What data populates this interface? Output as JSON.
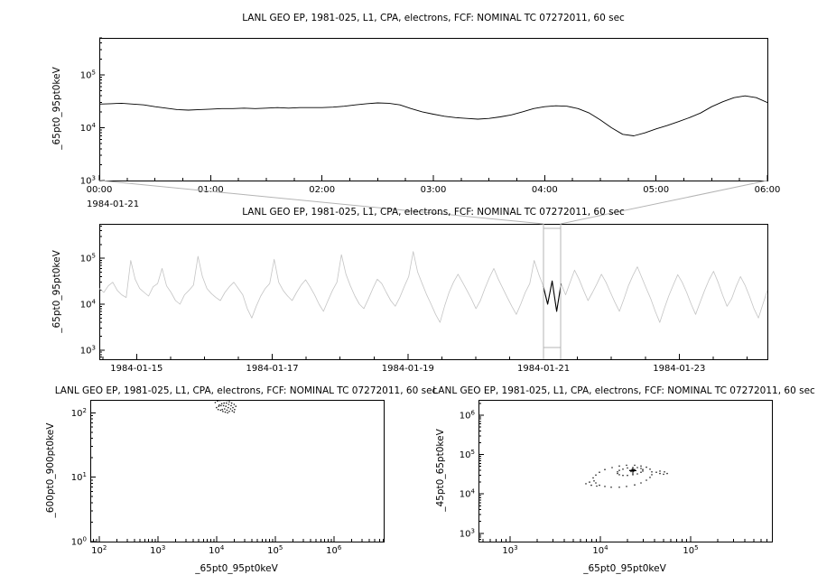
{
  "window": {
    "background": "#ffffff"
  },
  "titles": {
    "panel_top": "LANL GEO EP, 1981-025, L1, CPA, electrons, FCF: NOMINAL TC 07272011, 60 sec",
    "panel_context": "LANL GEO EP, 1981-025, L1, CPA, electrons, FCF: NOMINAL TC 07272011, 60 sec",
    "panel_bottom_left": "LANL GEO EP, 1981-025, L1, CPA, electrons, FCF: NOMINAL TC 07272011, 60 sec",
    "panel_bottom_right": "LANL GEO EP, 1981-025, L1, CPA, electrons, FCF: NOMINAL TC 07272011, 60 sec"
  },
  "labels": {
    "top_ylabel": "_65pt0_95pt0keV",
    "context_ylabel": "_65pt0_95pt0keV",
    "bl_ylabel": "_600pt0_900pt0keV",
    "bl_xlabel": "_65pt0_95pt0keV",
    "br_ylabel": "_45pt0_65pt0keV",
    "br_xlabel": "_65pt0_95pt0keV",
    "top_date_label": "1984-01-21"
  },
  "chart_data": [
    {
      "id": "top",
      "type": "line",
      "title": "LANL GEO EP, 1981-025, L1, CPA, electrons, FCF: NOMINAL TC 07272011, 60 sec",
      "ylabel": "_65pt0_95pt0keV",
      "x_axis": {
        "scale": "linear",
        "min": 0,
        "max": 6,
        "minor_step": 0.25,
        "ticks": [
          {
            "v": 0,
            "label": "00:00"
          },
          {
            "v": 1,
            "label": "01:00"
          },
          {
            "v": 2,
            "label": "02:00"
          },
          {
            "v": 3,
            "label": "03:00"
          },
          {
            "v": 4,
            "label": "04:00"
          },
          {
            "v": 5,
            "label": "05:00"
          },
          {
            "v": 6,
            "label": "06:00"
          }
        ],
        "date_label": "1984-01-21"
      },
      "y_axis": {
        "scale": "log",
        "min": 3,
        "max": 5.7,
        "tick_exponents": [
          3,
          4,
          5
        ]
      },
      "series": [
        {
          "name": "_65pt0_95pt0keV",
          "color": "#000000",
          "width": 0.9,
          "x_start": 0,
          "x_end": 6,
          "y": [
            28000,
            28500,
            29000,
            28000,
            27000,
            25000,
            23500,
            22000,
            21500,
            22000,
            22500,
            23000,
            23000,
            23500,
            23000,
            23500,
            24000,
            23500,
            24000,
            24000,
            24000,
            24500,
            25500,
            27000,
            28500,
            29500,
            29000,
            27000,
            23000,
            20000,
            18000,
            16500,
            15500,
            15000,
            14500,
            15000,
            16000,
            17500,
            20000,
            23000,
            25000,
            26000,
            25500,
            23000,
            19000,
            14000,
            10000,
            7500,
            7000,
            8000,
            9500,
            11000,
            13000,
            15500,
            19000,
            25000,
            31000,
            37000,
            40000,
            37000,
            30000
          ]
        }
      ]
    },
    {
      "id": "context",
      "type": "line",
      "title": "LANL GEO EP, 1981-025, L1, CPA, electrons, FCF: NOMINAL TC 07272011, 60 sec",
      "ylabel": "_65pt0_95pt0keV",
      "x_axis": {
        "scale": "linear",
        "min": 14.45,
        "max": 24.3,
        "minor_step": 0.5,
        "ticks": [
          {
            "v": 15,
            "label": "1984-01-15"
          },
          {
            "v": 17,
            "label": "1984-01-17"
          },
          {
            "v": 19,
            "label": "1984-01-19"
          },
          {
            "v": 21,
            "label": "1984-01-21"
          },
          {
            "v": 23,
            "label": "1984-01-23"
          }
        ]
      },
      "y_axis": {
        "scale": "log",
        "min": 2.8,
        "max": 5.75,
        "tick_exponents": [
          3,
          4,
          5
        ]
      },
      "series": [
        {
          "name": "_65pt0_95pt0keV",
          "color": "#c4c4c4",
          "width": 0.8,
          "x_start": 14.45,
          "x_end": 24.3,
          "y": [
            22000,
            18000,
            25000,
            30000,
            20000,
            16000,
            14000,
            90000,
            35000,
            22000,
            18000,
            15000,
            24000,
            28000,
            60000,
            25000,
            18000,
            12000,
            10000,
            16000,
            20000,
            26000,
            110000,
            40000,
            22000,
            17000,
            14000,
            12000,
            18000,
            24000,
            30000,
            22000,
            16000,
            8000,
            5000,
            9000,
            15000,
            22000,
            28000,
            95000,
            30000,
            20000,
            15000,
            12000,
            18000,
            26000,
            34000,
            24000,
            16000,
            10000,
            7000,
            12000,
            20000,
            30000,
            120000,
            45000,
            25000,
            15000,
            10000,
            8000,
            13000,
            22000,
            35000,
            28000,
            18000,
            12000,
            9000,
            14000,
            24000,
            40000,
            140000,
            50000,
            28000,
            16000,
            10000,
            6000,
            4000,
            9000,
            18000,
            30000,
            45000,
            30000,
            20000,
            13000,
            8000,
            12000,
            22000,
            38000,
            60000,
            35000,
            22000,
            14000,
            9000,
            6000,
            10000,
            18000,
            28000,
            90000,
            45000,
            25000,
            10000,
            32000,
            7000,
            28000,
            16000,
            30000,
            55000,
            35000,
            20000,
            12000,
            18000,
            28000,
            45000,
            30000,
            18000,
            11000,
            7000,
            13000,
            25000,
            42000,
            65000,
            38000,
            22000,
            13000,
            7000,
            4000,
            8000,
            15000,
            26000,
            44000,
            30000,
            18000,
            10000,
            6000,
            11000,
            20000,
            34000,
            52000,
            30000,
            16000,
            9000,
            13000,
            24000,
            40000,
            26000,
            15000,
            8000,
            5000,
            10000,
            20000
          ]
        }
      ],
      "highlight": {
        "x_range": [
          20.95,
          21.3
        ],
        "color": "#000000"
      },
      "selection_box": {
        "x_range": [
          21.0,
          21.25
        ],
        "color": "#b4b4b4"
      }
    },
    {
      "id": "bottom_left",
      "type": "scatter",
      "title": "LANL GEO EP, 1981-025, L1, CPA, electrons, FCF: NOMINAL TC 07272011, 60 sec",
      "xlabel": "_65pt0_95pt0keV",
      "ylabel": "_600pt0_900pt0keV",
      "x_axis": {
        "scale": "log",
        "min": 1.85,
        "max": 6.85,
        "tick_exponents": [
          2,
          3,
          4,
          5,
          6
        ]
      },
      "y_axis": {
        "scale": "log",
        "min": 0,
        "max": 2.2,
        "tick_exponents": [
          0,
          1,
          2
        ]
      },
      "point_color": "#1a1a1a",
      "points_log10": [
        [
          3.98,
          2.16
        ],
        [
          4.02,
          2.18
        ],
        [
          4.06,
          2.19
        ],
        [
          4.1,
          2.2
        ],
        [
          4.14,
          2.2
        ],
        [
          4.18,
          2.19
        ],
        [
          4.22,
          2.17
        ],
        [
          4.26,
          2.15
        ],
        [
          4.3,
          2.13
        ],
        [
          4.33,
          2.1
        ],
        [
          4.05,
          2.12
        ],
        [
          4.09,
          2.14
        ],
        [
          4.13,
          2.15
        ],
        [
          4.17,
          2.15
        ],
        [
          4.21,
          2.13
        ],
        [
          4.25,
          2.11
        ],
        [
          4.28,
          2.08
        ],
        [
          4.31,
          2.05
        ],
        [
          4.0,
          2.08
        ],
        [
          4.04,
          2.1
        ],
        [
          4.08,
          2.11
        ],
        [
          4.12,
          2.11
        ],
        [
          4.16,
          2.1
        ],
        [
          4.2,
          2.08
        ],
        [
          4.24,
          2.06
        ],
        [
          4.27,
          2.03
        ],
        [
          4.3,
          2.01
        ],
        [
          4.1,
          2.05
        ],
        [
          4.14,
          2.06
        ],
        [
          4.18,
          2.04
        ],
        [
          4.22,
          2.02
        ],
        [
          4.15,
          2.01
        ],
        [
          4.19,
          2.0
        ],
        [
          4.11,
          2.02
        ],
        [
          4.07,
          2.04
        ],
        [
          4.03,
          2.05
        ]
      ]
    },
    {
      "id": "bottom_right",
      "type": "scatter",
      "title": "LANL GEO EP, 1981-025, L1, CPA, electrons, FCF: NOMINAL TC 07272011, 60 sec",
      "xlabel": "_65pt0_95pt0keV",
      "ylabel": "_45pt0_65pt0keV",
      "x_axis": {
        "scale": "log",
        "min": 2.65,
        "max": 5.9,
        "tick_exponents": [
          3,
          4,
          5
        ]
      },
      "y_axis": {
        "scale": "log",
        "min": 2.79,
        "max": 6.39,
        "tick_exponents": [
          3,
          4,
          5,
          6
        ]
      },
      "point_color": "#1a1a1a",
      "cross_marker": [
        4.36,
        4.59
      ],
      "points_log10": [
        [
          4.55,
          4.63
        ],
        [
          4.51,
          4.68
        ],
        [
          4.45,
          4.71
        ],
        [
          4.38,
          4.73
        ],
        [
          4.29,
          4.73
        ],
        [
          4.21,
          4.71
        ],
        [
          4.13,
          4.67
        ],
        [
          4.05,
          4.62
        ],
        [
          3.99,
          4.55
        ],
        [
          3.95,
          4.48
        ],
        [
          3.92,
          4.41
        ],
        [
          3.93,
          4.33
        ],
        [
          3.95,
          4.28
        ],
        [
          3.99,
          4.22
        ],
        [
          4.05,
          4.19
        ],
        [
          4.12,
          4.17
        ],
        [
          4.21,
          4.17
        ],
        [
          4.29,
          4.19
        ],
        [
          4.38,
          4.23
        ],
        [
          4.45,
          4.28
        ],
        [
          4.51,
          4.35
        ],
        [
          4.55,
          4.42
        ],
        [
          4.57,
          4.49
        ],
        [
          4.57,
          4.56
        ],
        [
          4.47,
          4.62
        ],
        [
          4.45,
          4.65
        ],
        [
          4.41,
          4.67
        ],
        [
          4.36,
          4.67
        ],
        [
          4.3,
          4.66
        ],
        [
          4.25,
          4.63
        ],
        [
          4.21,
          4.6
        ],
        [
          4.19,
          4.56
        ],
        [
          4.19,
          4.52
        ],
        [
          4.21,
          4.49
        ],
        [
          4.25,
          4.47
        ],
        [
          4.3,
          4.47
        ],
        [
          4.36,
          4.49
        ],
        [
          4.41,
          4.51
        ],
        [
          4.45,
          4.55
        ],
        [
          4.47,
          4.58
        ],
        [
          4.34,
          4.59
        ],
        [
          4.36,
          4.61
        ],
        [
          4.38,
          4.6
        ],
        [
          4.35,
          4.62
        ],
        [
          4.37,
          4.58
        ],
        [
          4.33,
          4.6
        ],
        [
          4.36,
          4.59
        ],
        [
          4.38,
          4.62
        ],
        [
          4.34,
          4.57
        ],
        [
          4.35,
          4.6
        ],
        [
          4.37,
          4.61
        ],
        [
          4.36,
          4.57
        ],
        [
          4.62,
          4.55
        ],
        [
          4.66,
          4.52
        ],
        [
          4.7,
          4.5
        ],
        [
          4.74,
          4.52
        ],
        [
          4.71,
          4.56
        ],
        [
          4.66,
          4.58
        ],
        [
          3.88,
          4.3
        ],
        [
          3.84,
          4.26
        ],
        [
          3.9,
          4.22
        ],
        [
          3.96,
          4.2
        ]
      ]
    }
  ]
}
